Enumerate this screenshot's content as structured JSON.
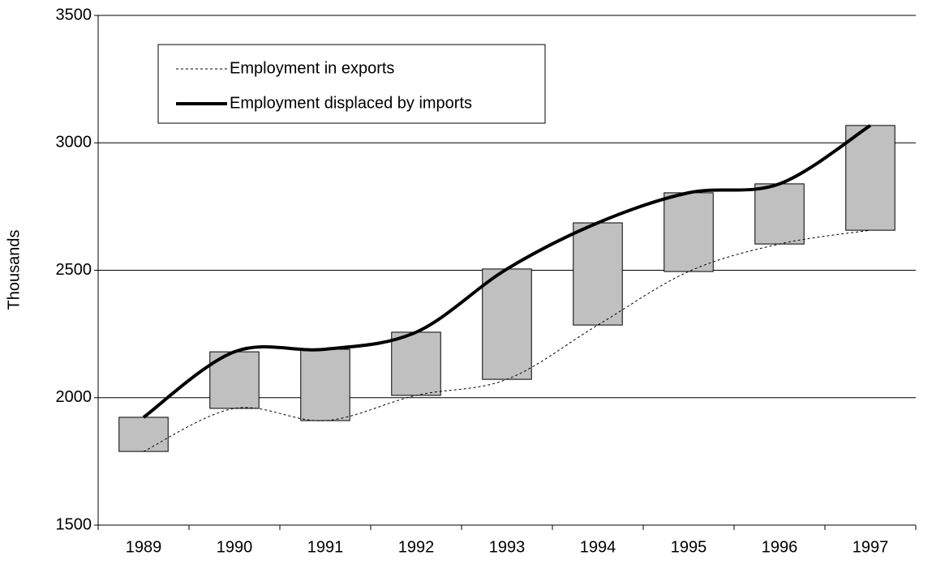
{
  "chart_data": {
    "type": "line",
    "categories": [
      "1989",
      "1990",
      "1991",
      "1992",
      "1993",
      "1994",
      "1995",
      "1996",
      "1997"
    ],
    "series": [
      {
        "name": "Employment in exports",
        "color": "#000000",
        "linestyle": "dotted",
        "values": [
          1789,
          1958,
          1910,
          2009,
          2072,
          2285,
          2495,
          2603,
          2657
        ]
      },
      {
        "name": "Employment displaced by imports",
        "color": "#000000",
        "linestyle": "solid",
        "values": [
          1923,
          2180,
          2190,
          2257,
          2505,
          2686,
          2804,
          2839,
          3068
        ]
      }
    ],
    "updown_bars_color": "#c0c0c0",
    "y_label": "Thousands",
    "ylim": [
      1500,
      3500
    ],
    "yticks": [
      1500,
      2000,
      2500,
      3000,
      3500
    ],
    "grid": true
  }
}
